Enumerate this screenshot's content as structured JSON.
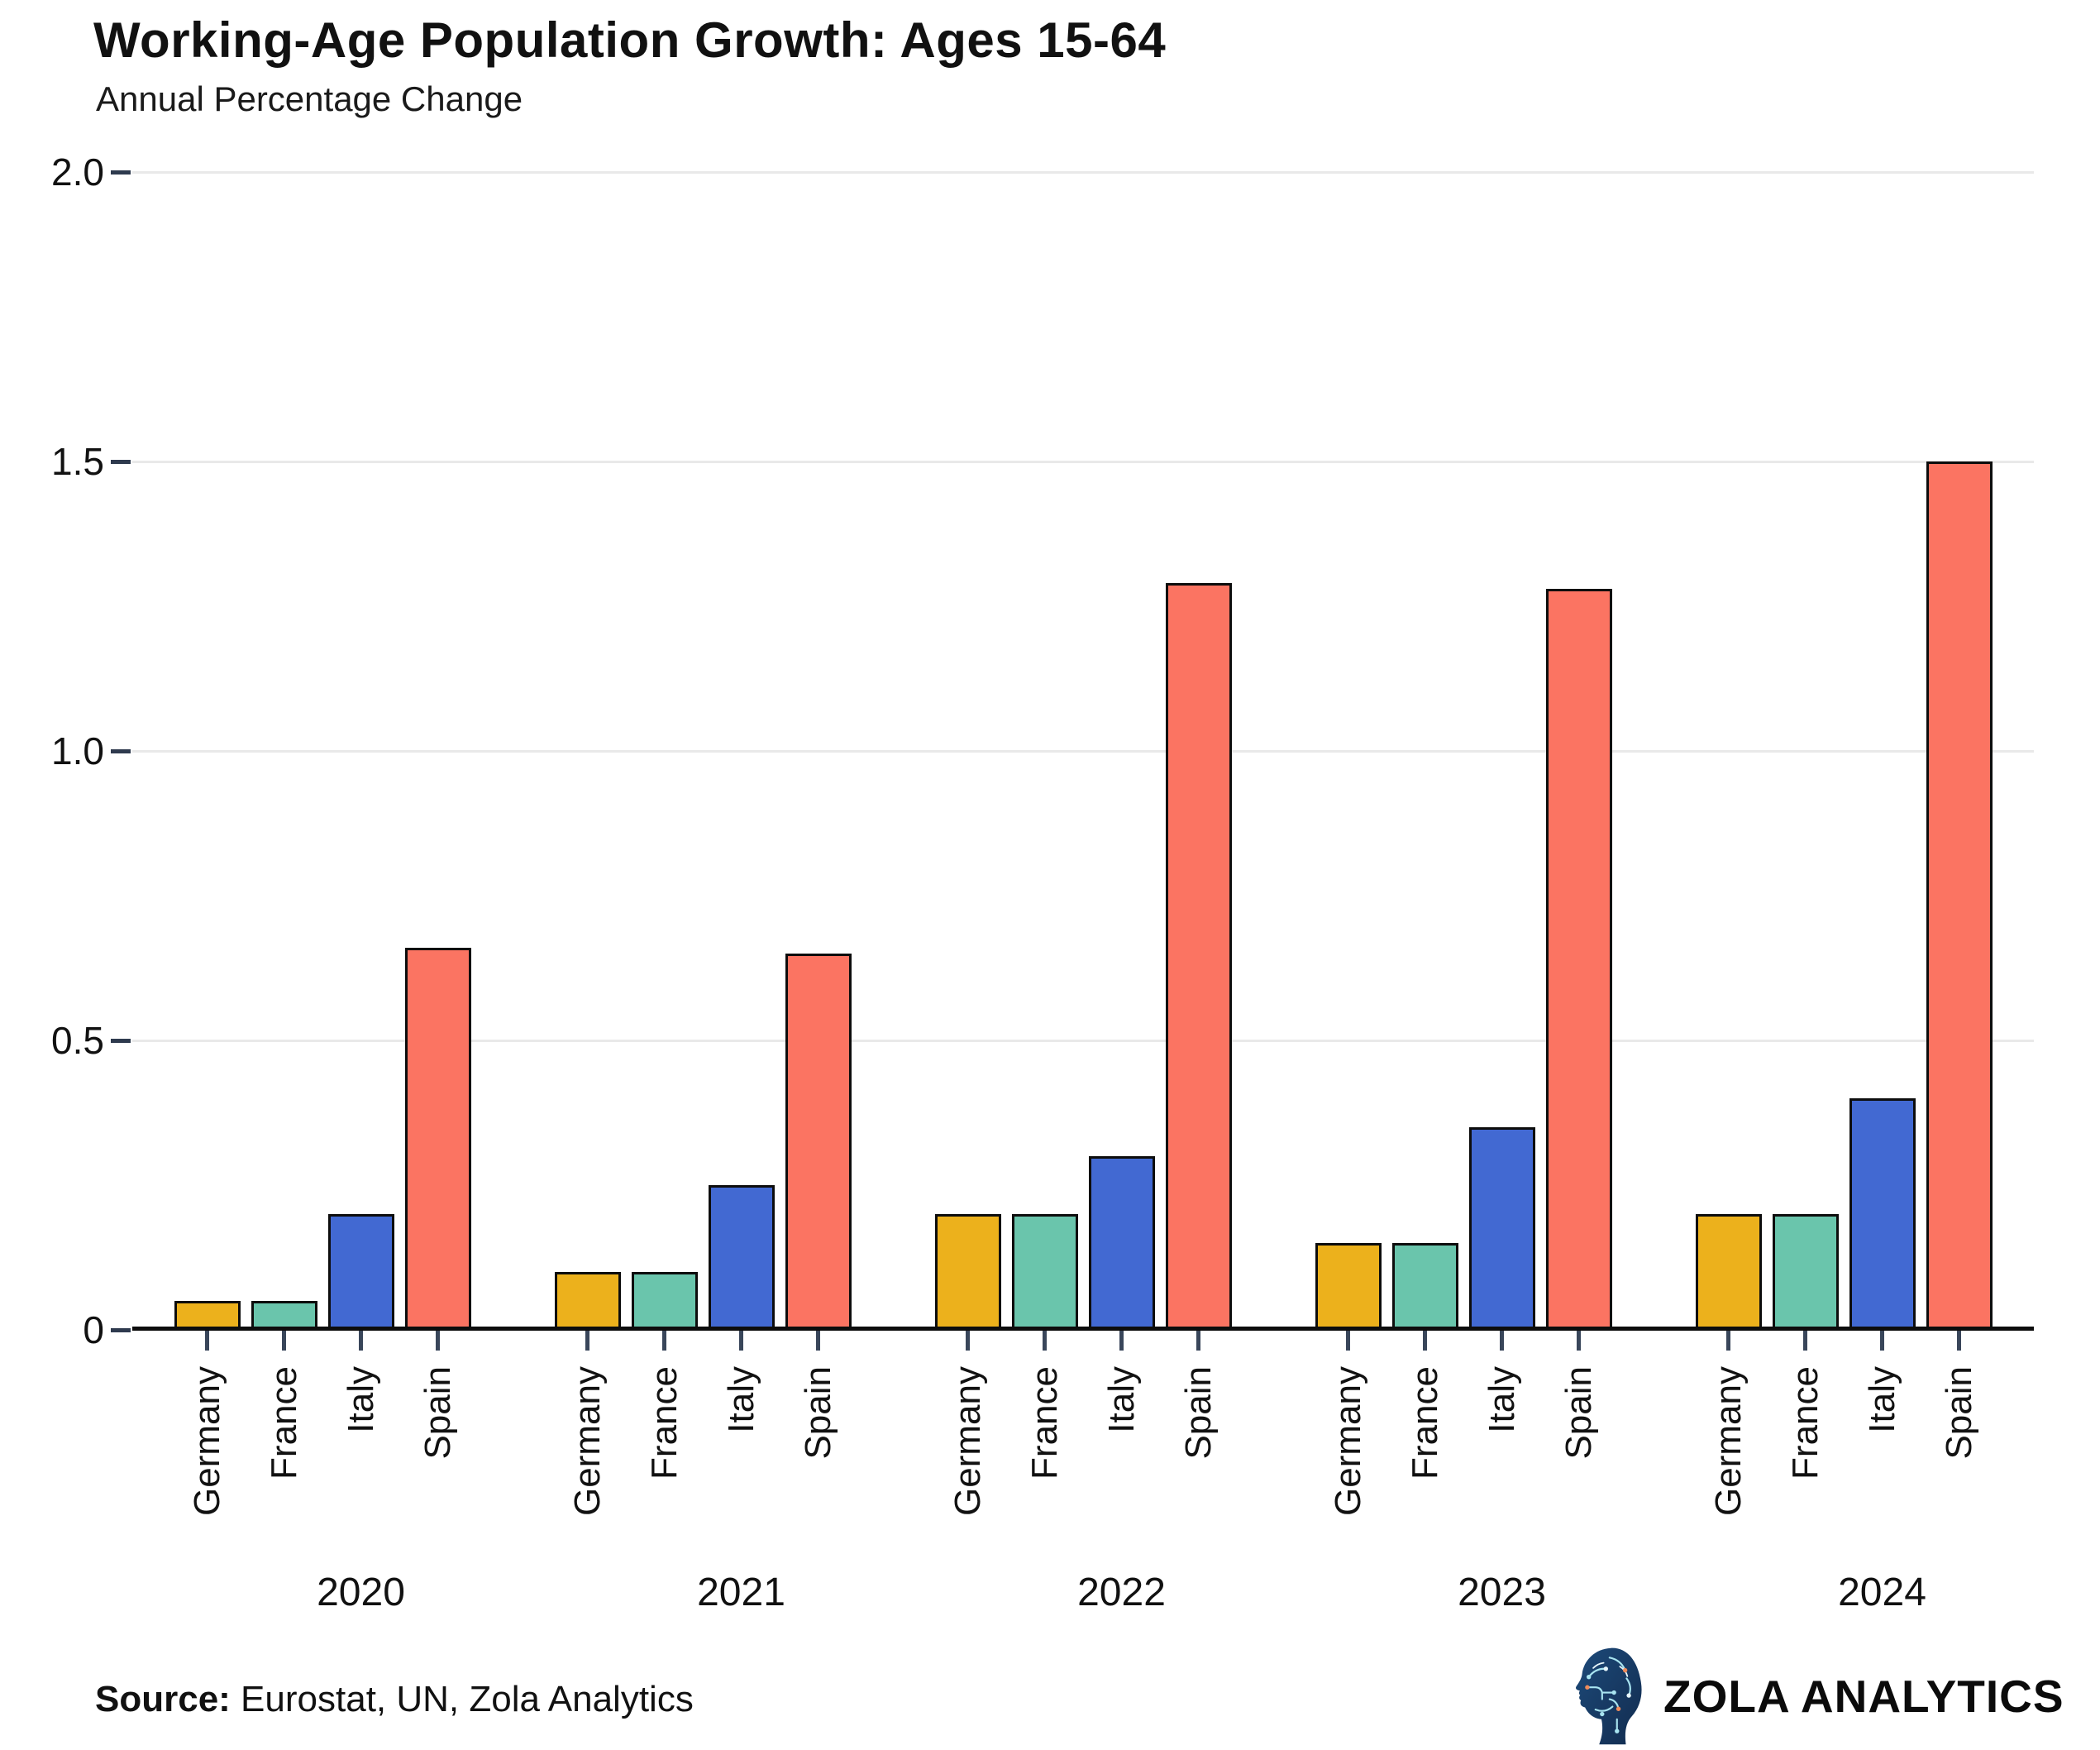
{
  "title": "Working-Age Population Growth: Ages 15-64",
  "subtitle": "Annual Percentage Change",
  "source": {
    "label": "Source:",
    "text": " Eurostat, UN, Zola Analytics"
  },
  "brand": {
    "name": "ZOLA ANALYTICS",
    "icon": "circuit-head-icon",
    "icon_colors": {
      "head_dark": "#122c4f",
      "head_mid": "#1d4a7a",
      "trace_light": "#a8e4f0",
      "trace_white": "#e8f7fb",
      "dot_orange": "#ef8b5a"
    }
  },
  "axis": {
    "ytick_labels": [
      "0",
      "0.5",
      "1.0",
      "1.5",
      "2.0"
    ],
    "ytick_values": [
      0,
      0.5,
      1.0,
      1.5,
      2.0
    ],
    "axis_color": "#0d0d0d",
    "tick_color": "#39465a",
    "grid_color": "#e9e9e9"
  },
  "chart_data": {
    "type": "bar",
    "title": "Working-Age Population Growth: Ages 15-64",
    "subtitle": "Annual Percentage Change",
    "categories": [
      "2020",
      "2021",
      "2022",
      "2023",
      "2024"
    ],
    "group_member_labels": [
      "Germany",
      "France",
      "Italy",
      "Spain"
    ],
    "series": [
      {
        "name": "Germany",
        "color": "#ECB11C",
        "values": [
          0.05,
          0.1,
          0.2,
          0.15,
          0.2
        ]
      },
      {
        "name": "France",
        "color": "#6AC5AC",
        "values": [
          0.05,
          0.1,
          0.2,
          0.15,
          0.2
        ]
      },
      {
        "name": "Italy",
        "color": "#4269D2",
        "values": [
          0.2,
          0.25,
          0.3,
          0.35,
          0.4
        ]
      },
      {
        "name": "Spain",
        "color": "#FB7462",
        "values": [
          0.66,
          0.65,
          1.29,
          1.28,
          1.5
        ]
      }
    ],
    "ylim": [
      0,
      2.0
    ],
    "bar_outline": "#0d0d0d",
    "grid": "horizontal",
    "legend": "none",
    "xlabel": "",
    "ylabel": ""
  }
}
